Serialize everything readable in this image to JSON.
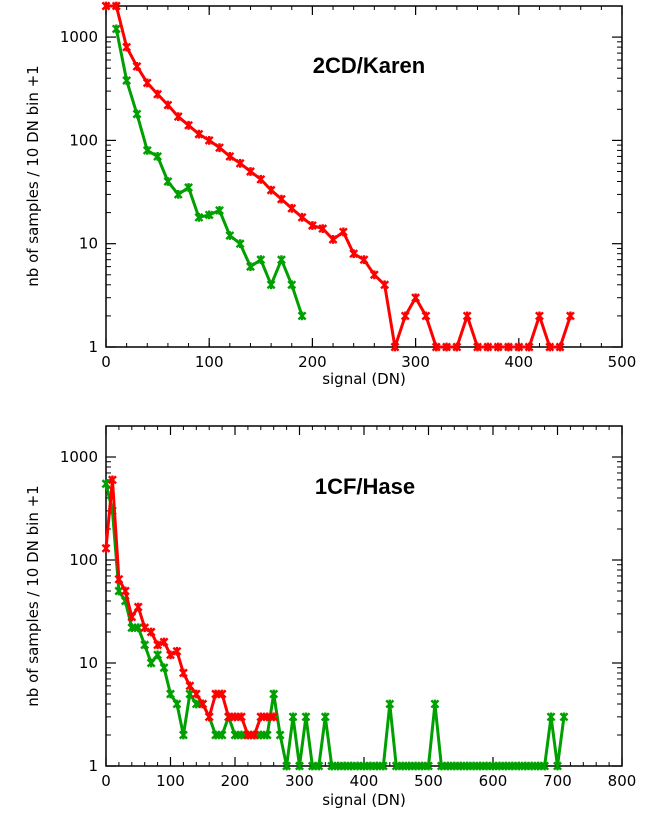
{
  "chart_data": [
    {
      "type": "line",
      "title": "2CD/Karen",
      "xlabel": "signal (DN)",
      "ylabel": "nb of samples / 10 DN bin +1",
      "xlim": [
        0,
        500
      ],
      "ylim": [
        1,
        2000
      ],
      "yscale": "log",
      "xticks": [
        0,
        100,
        200,
        300,
        400,
        500
      ],
      "xtick_labels": [
        "0",
        "100",
        "200",
        "300",
        "400",
        "500"
      ],
      "yticks": [
        1,
        10,
        100,
        1000
      ],
      "ytick_labels": [
        "1",
        "10",
        "100",
        "1000"
      ],
      "grid": false,
      "legend": "none",
      "series": [
        {
          "color": "#ff0000",
          "x": [
            0,
            10,
            20,
            30,
            40,
            50,
            60,
            70,
            80,
            90,
            100,
            110,
            120,
            130,
            140,
            150,
            160,
            170,
            180,
            190,
            200,
            210,
            220,
            230,
            240,
            250,
            260,
            270,
            280,
            290,
            300,
            310,
            320,
            330,
            340,
            350,
            360,
            370,
            380,
            390,
            400,
            410,
            420,
            430,
            440,
            450
          ],
          "y": [
            2000,
            2000,
            800,
            520,
            360,
            280,
            220,
            170,
            140,
            115,
            100,
            85,
            70,
            60,
            50,
            42,
            33,
            27,
            22,
            18,
            15,
            14,
            11,
            13,
            8,
            7,
            5,
            4,
            1,
            2,
            3,
            2,
            1,
            1,
            1,
            2,
            1,
            1,
            1,
            1,
            1,
            1,
            2,
            1,
            1,
            2
          ]
        },
        {
          "color": "#00a000",
          "x": [
            10,
            20,
            30,
            40,
            50,
            60,
            70,
            80,
            90,
            100,
            110,
            120,
            130,
            140,
            150,
            160,
            170,
            180,
            190
          ],
          "y": [
            1200,
            380,
            180,
            80,
            70,
            40,
            30,
            35,
            18,
            19,
            21,
            12,
            10,
            6,
            7,
            4,
            7,
            4,
            2
          ]
        }
      ]
    },
    {
      "type": "line",
      "title": "1CF/Hase",
      "xlabel": "signal (DN)",
      "ylabel": "nb of samples / 10 DN bin +1",
      "xlim": [
        0,
        800
      ],
      "ylim": [
        1,
        2000
      ],
      "yscale": "log",
      "xticks": [
        0,
        100,
        200,
        300,
        400,
        500,
        600,
        700,
        800
      ],
      "xtick_labels": [
        "0",
        "100",
        "200",
        "300",
        "400",
        "500",
        "600",
        "700",
        "800"
      ],
      "yticks": [
        1,
        10,
        100,
        1000
      ],
      "ytick_labels": [
        "1",
        "10",
        "100",
        "1000"
      ],
      "grid": false,
      "legend": "none",
      "series": [
        {
          "color": "#ff0000",
          "x": [
            0,
            10,
            20,
            30,
            40,
            50,
            60,
            70,
            80,
            90,
            100,
            110,
            120,
            130,
            140,
            150,
            160,
            170,
            180,
            190,
            200,
            210,
            220,
            230,
            240,
            250,
            260
          ],
          "y": [
            130,
            600,
            65,
            50,
            28,
            35,
            22,
            20,
            15,
            16,
            12,
            13,
            8,
            6,
            5,
            4,
            3,
            5,
            5,
            3,
            3,
            3,
            2,
            2,
            3,
            3,
            3
          ]
        },
        {
          "color": "#00a000",
          "x": [
            0,
            10,
            20,
            30,
            40,
            50,
            60,
            70,
            80,
            90,
            100,
            110,
            120,
            130,
            140,
            150,
            160,
            170,
            180,
            190,
            200,
            210,
            220,
            230,
            240,
            250,
            260,
            270,
            280,
            290,
            300,
            310,
            320,
            330,
            340,
            350,
            360,
            370,
            380,
            390,
            400,
            410,
            420,
            430,
            440,
            450,
            460,
            470,
            480,
            490,
            500,
            510,
            520,
            530,
            540,
            550,
            560,
            570,
            580,
            590,
            600,
            610,
            620,
            630,
            640,
            650,
            660,
            670,
            680,
            690,
            700,
            710
          ],
          "y": [
            550,
            300,
            50,
            40,
            22,
            22,
            15,
            10,
            12,
            9,
            5,
            4,
            2,
            5,
            4,
            4,
            3,
            2,
            2,
            3,
            2,
            2,
            2,
            2,
            2,
            2,
            5,
            2,
            1,
            3,
            1,
            3,
            1,
            1,
            3,
            1,
            1,
            1,
            1,
            1,
            1,
            1,
            1,
            1,
            4,
            1,
            1,
            1,
            1,
            1,
            1,
            4,
            1,
            1,
            1,
            1,
            1,
            1,
            1,
            1,
            1,
            1,
            1,
            1,
            1,
            1,
            1,
            1,
            1,
            3,
            1,
            3
          ]
        }
      ]
    }
  ]
}
